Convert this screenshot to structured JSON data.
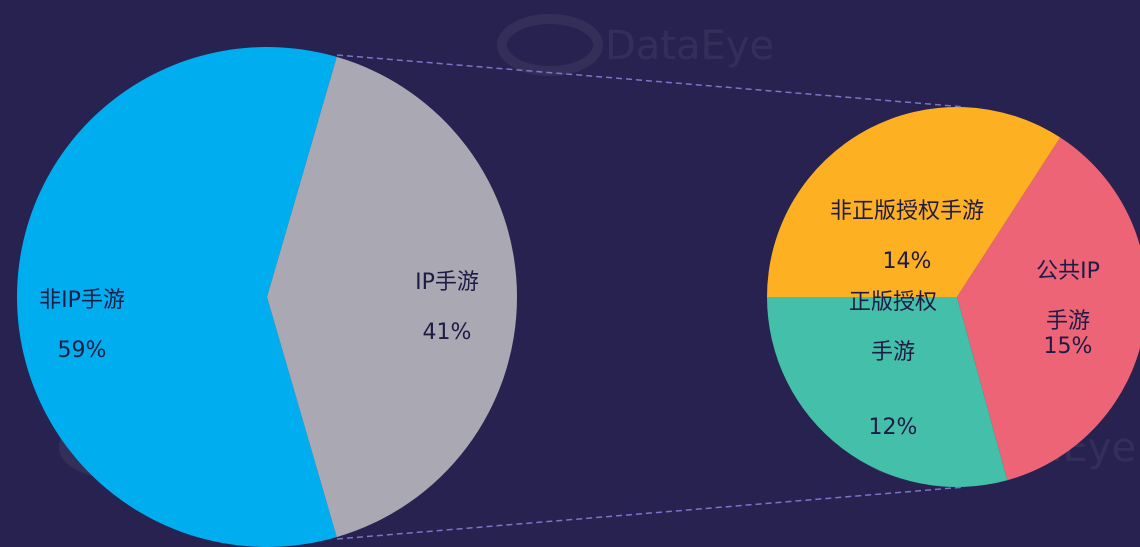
{
  "watermark": "DataEye",
  "chart_data": [
    {
      "type": "pie",
      "categories": [
        "非IP手游",
        "IP手游"
      ],
      "values": [
        59,
        41
      ],
      "value_labels": [
        "59%",
        "41%"
      ],
      "colors": [
        "#00aeef",
        "#aaa8b2"
      ]
    },
    {
      "type": "pie",
      "categories": [
        "非正版授权手游",
        "公共IP手游",
        "正版授权\n手游"
      ],
      "values": [
        14,
        15,
        12
      ],
      "value_labels": [
        "14%",
        "15%",
        "12%"
      ],
      "colors": [
        "#fdb022",
        "#ec6475",
        "#43bfaa"
      ]
    }
  ]
}
